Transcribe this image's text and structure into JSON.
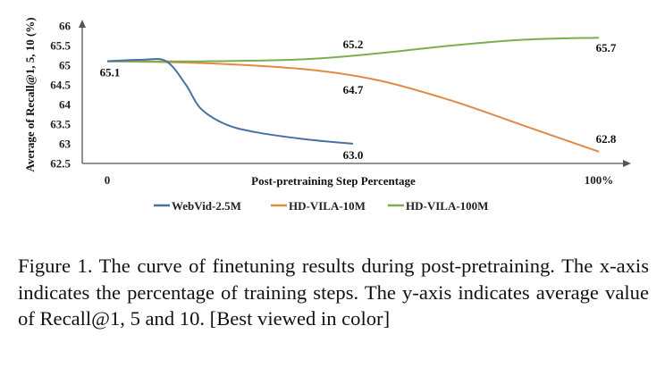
{
  "chart_data": {
    "type": "line",
    "title": "",
    "xlabel": "Post-pretraining Step Percentage",
    "ylabel": "Average of Recall@1, 5, 10 (%)",
    "ylim": [
      62.5,
      66
    ],
    "yticks": [
      "62.5",
      "63",
      "63.5",
      "64",
      "64.5",
      "65",
      "65.5",
      "66"
    ],
    "xticks": [
      "0",
      "100%"
    ],
    "xlim": [
      0,
      100
    ],
    "grid": false,
    "legend": "bottom",
    "series": [
      {
        "name": "WebVid-2.5M",
        "color": "#4a6fa5",
        "x": [
          0,
          7,
          12,
          16,
          19,
          24,
          30,
          40,
          50
        ],
        "values": [
          65.1,
          65.14,
          65.1,
          64.5,
          63.9,
          63.5,
          63.3,
          63.12,
          63.0
        ],
        "end_label": "63.0"
      },
      {
        "name": "HD-VILA-10M",
        "color": "#e08a45",
        "x": [
          0,
          20,
          40,
          55,
          70,
          85,
          100
        ],
        "values": [
          65.1,
          65.05,
          64.9,
          64.62,
          64.1,
          63.45,
          62.8
        ],
        "mid_label": "64.7",
        "end_label": "62.8"
      },
      {
        "name": "HD-VILA-100M",
        "color": "#7aae4f",
        "x": [
          0,
          20,
          40,
          55,
          70,
          85,
          100
        ],
        "values": [
          65.1,
          65.1,
          65.15,
          65.3,
          65.5,
          65.65,
          65.7
        ],
        "mid_label": "65.2",
        "end_label": "65.7"
      }
    ],
    "start_label": "65.1"
  },
  "caption": "Figure 1. The curve of finetuning results during post-pretraining. The x-axis indicates the percentage of training steps. The y-axis indicates average value of Recall@1, 5 and 10. [Best viewed in color]"
}
